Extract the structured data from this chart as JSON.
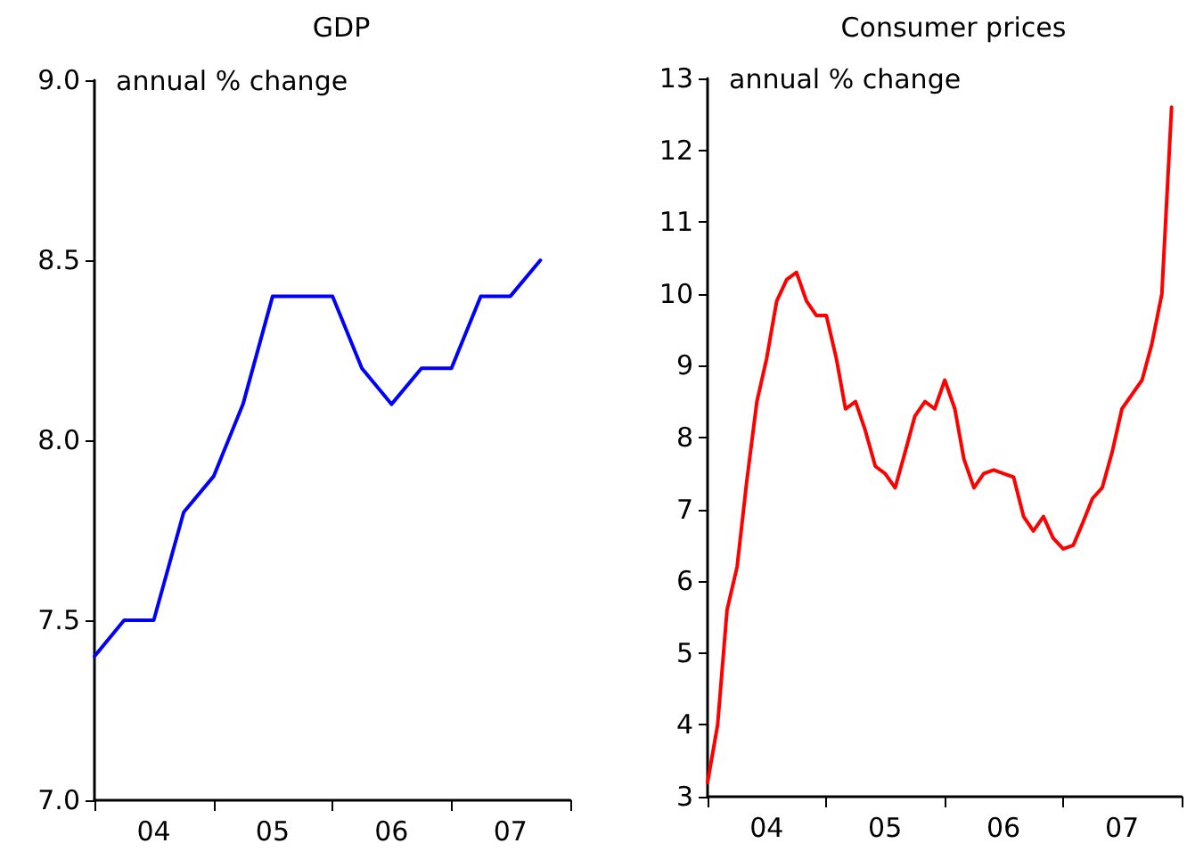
{
  "chart_data": [
    {
      "type": "line",
      "title": "GDP",
      "ylabel": "annual % change",
      "x": [
        "2004-01",
        "2004-04",
        "2004-07",
        "2004-10",
        "2005-01",
        "2005-04",
        "2005-07",
        "2005-10",
        "2006-01",
        "2006-04",
        "2006-07",
        "2006-10",
        "2007-01",
        "2007-04",
        "2007-07",
        "2007-10"
      ],
      "series": [
        {
          "color": "#0000ff",
          "values": [
            7.4,
            7.5,
            7.5,
            7.8,
            7.9,
            8.1,
            8.4,
            8.4,
            8.4,
            8.2,
            8.1,
            8.2,
            8.2,
            8.4,
            8.4,
            8.5
          ]
        }
      ],
      "xlim": [
        "2004-01",
        "2008-01"
      ],
      "xticks": [
        {
          "value": "2004-01",
          "label": null
        },
        {
          "value": "2004-07",
          "label": "04"
        },
        {
          "value": "2005-01",
          "label": null
        },
        {
          "value": "2005-07",
          "label": "05"
        },
        {
          "value": "2006-01",
          "label": null
        },
        {
          "value": "2006-07",
          "label": "06"
        },
        {
          "value": "2007-01",
          "label": null
        },
        {
          "value": "2007-07",
          "label": "07"
        },
        {
          "value": "2008-01",
          "label": null
        }
      ],
      "ylim": [
        7,
        9
      ],
      "yticks": [
        {
          "value": 7,
          "label": "7.0"
        },
        7.5,
        {
          "value": 8,
          "label": "8.0"
        },
        8.5,
        {
          "value": 9,
          "label": "9.0"
        }
      ],
      "grid": false,
      "marker": "none",
      "line_style": "solid"
    },
    {
      "type": "line",
      "title": "Consumer prices",
      "ylabel": "annual % change",
      "x": [
        "2004-01",
        "2004-02",
        "2004-03",
        "2004-04",
        "2004-05",
        "2004-06",
        "2004-07",
        "2004-08",
        "2004-09",
        "2004-10",
        "2004-11",
        "2004-12",
        "2005-01",
        "2005-02",
        "2005-03",
        "2005-04",
        "2005-05",
        "2005-06",
        "2005-07",
        "2005-08",
        "2005-09",
        "2005-10",
        "2005-11",
        "2005-12",
        "2006-01",
        "2006-02",
        "2006-03",
        "2006-04",
        "2006-05",
        "2006-06",
        "2006-07",
        "2006-08",
        "2006-09",
        "2006-10",
        "2006-11",
        "2006-12",
        "2007-01",
        "2007-02",
        "2007-03",
        "2007-04",
        "2007-05",
        "2007-06",
        "2007-07",
        "2007-08",
        "2007-09",
        "2007-10",
        "2007-11",
        "2007-12"
      ],
      "series": [
        {
          "color": "#ff0000",
          "values": [
            3.2,
            4.0,
            5.6,
            6.2,
            7.4,
            8.5,
            9.1,
            9.9,
            10.2,
            10.3,
            9.9,
            9.7,
            9.7,
            9.1,
            8.4,
            8.5,
            8.1,
            7.6,
            7.5,
            7.3,
            7.8,
            8.3,
            8.5,
            8.4,
            8.8,
            8.4,
            7.7,
            7.3,
            7.5,
            7.55,
            7.5,
            7.45,
            6.9,
            6.7,
            6.9,
            6.6,
            6.45,
            6.5,
            6.8,
            7.15,
            7.3,
            7.8,
            8.4,
            8.6,
            8.8,
            9.3,
            10.0,
            12.6
          ]
        }
      ],
      "xlim": [
        "2004-01",
        "2008-01"
      ],
      "xticks": [
        {
          "value": "2004-01",
          "label": null
        },
        {
          "value": "2004-07",
          "label": "04"
        },
        {
          "value": "2005-01",
          "label": null
        },
        {
          "value": "2005-07",
          "label": "05"
        },
        {
          "value": "2006-01",
          "label": null
        },
        {
          "value": "2006-07",
          "label": "06"
        },
        {
          "value": "2007-01",
          "label": null
        },
        {
          "value": "2007-07",
          "label": "07"
        },
        {
          "value": "2008-01",
          "label": null
        }
      ],
      "ylim": [
        3,
        13
      ],
      "yticks": [
        3,
        4,
        5,
        6,
        7,
        8,
        9,
        10,
        11,
        12,
        13
      ],
      "grid": false,
      "marker": "none",
      "line_style": "solid"
    }
  ]
}
